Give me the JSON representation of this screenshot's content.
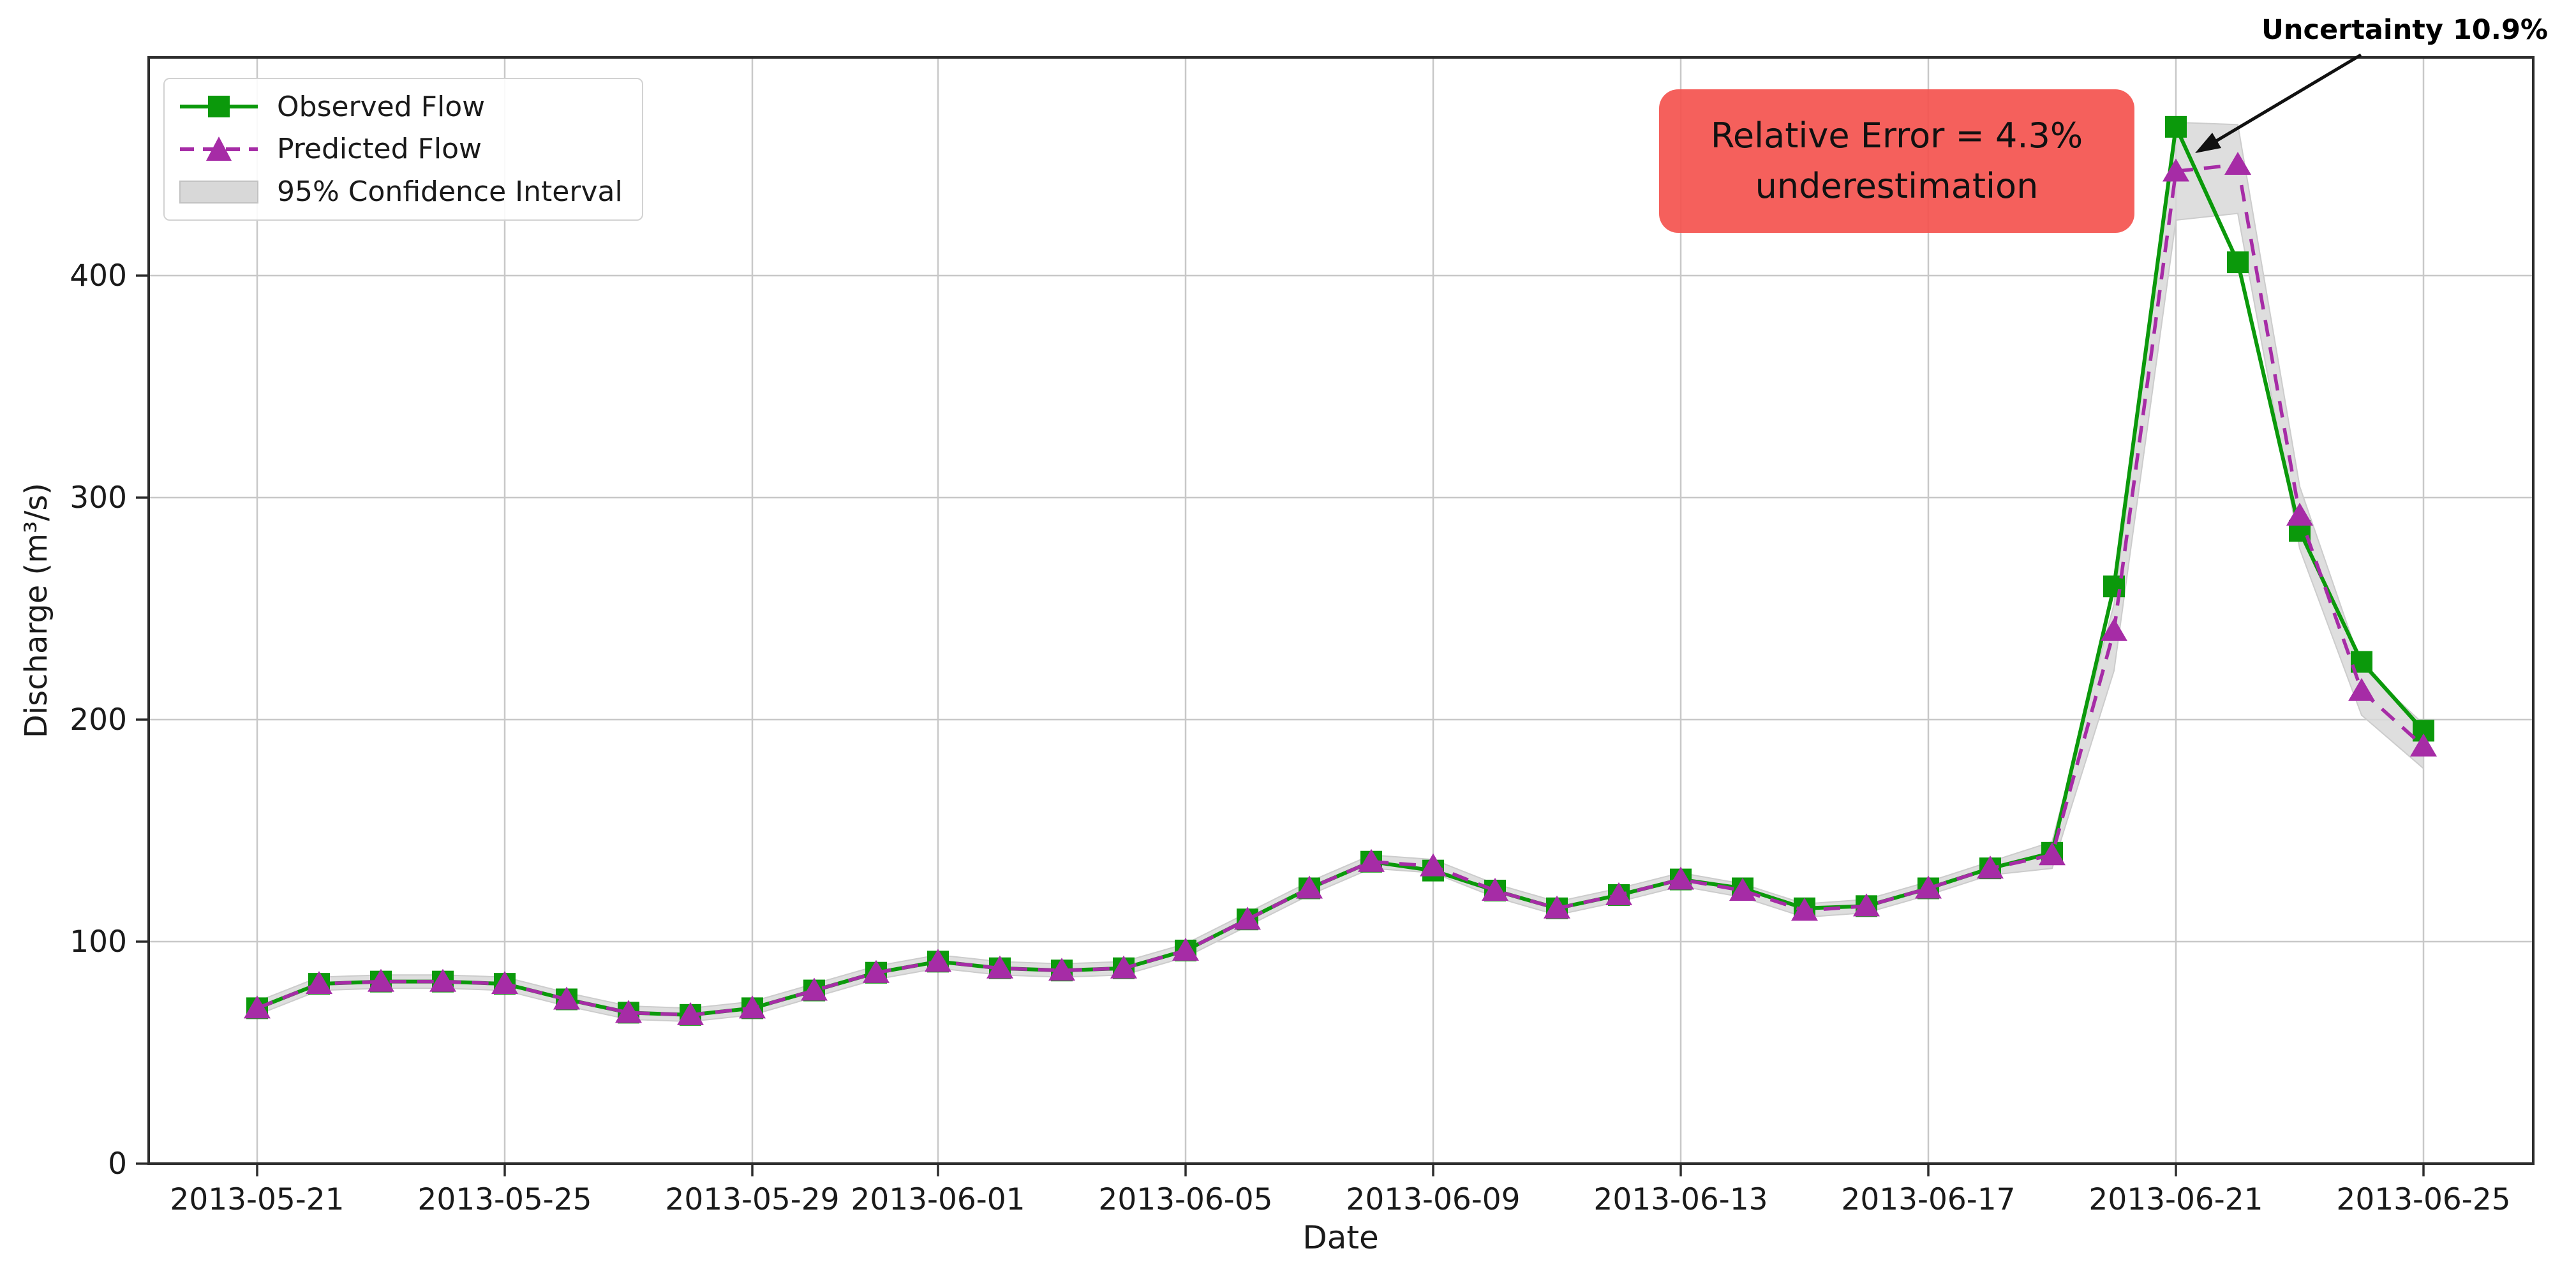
{
  "chart_data": {
    "type": "line",
    "title": "",
    "xlabel": "Date",
    "ylabel": "Discharge (m³/s)",
    "grid": true,
    "legend_position": "upper left",
    "ylim": [
      0,
      498
    ],
    "yticks": [
      0,
      100,
      200,
      300,
      400
    ],
    "xticks": [
      {
        "i": 0,
        "label": "2013-05-21"
      },
      {
        "i": 4,
        "label": "2013-05-25"
      },
      {
        "i": 8,
        "label": "2013-05-29"
      },
      {
        "i": 11,
        "label": "2013-06-01"
      },
      {
        "i": 15,
        "label": "2013-06-05"
      },
      {
        "i": 19,
        "label": "2013-06-09"
      },
      {
        "i": 23,
        "label": "2013-06-13"
      },
      {
        "i": 27,
        "label": "2013-06-17"
      },
      {
        "i": 31,
        "label": "2013-06-21"
      },
      {
        "i": 35,
        "label": "2013-06-25"
      }
    ],
    "x": [
      "2013-05-21",
      "2013-05-22",
      "2013-05-23",
      "2013-05-24",
      "2013-05-25",
      "2013-05-26",
      "2013-05-27",
      "2013-05-28",
      "2013-05-29",
      "2013-05-30",
      "2013-05-31",
      "2013-06-01",
      "2013-06-02",
      "2013-06-03",
      "2013-06-04",
      "2013-06-05",
      "2013-06-06",
      "2013-06-07",
      "2013-06-08",
      "2013-06-09",
      "2013-06-10",
      "2013-06-11",
      "2013-06-12",
      "2013-06-13",
      "2013-06-14",
      "2013-06-15",
      "2013-06-16",
      "2013-06-17",
      "2013-06-18",
      "2013-06-19",
      "2013-06-20",
      "2013-06-21",
      "2013-06-22",
      "2013-06-23",
      "2013-06-24",
      "2013-06-25"
    ],
    "series": [
      {
        "name": "Observed Flow",
        "marker": "square",
        "style": "solid",
        "values": [
          70,
          81,
          82,
          82,
          81,
          74,
          68,
          67,
          70,
          78,
          86,
          91,
          88,
          87,
          88,
          96,
          110,
          124,
          136,
          132,
          123,
          115,
          121,
          128,
          124,
          115,
          116,
          124,
          133,
          140,
          260,
          467,
          406,
          285,
          226,
          195
        ]
      },
      {
        "name": "Predicted Flow",
        "marker": "triangle",
        "style": "dashed",
        "values": [
          70,
          81,
          82,
          82,
          81,
          74,
          68,
          67,
          70,
          78,
          86,
          91,
          88,
          87,
          88,
          96,
          110,
          124,
          136,
          134,
          123,
          115,
          121,
          128,
          123,
          114,
          116,
          124,
          133,
          139,
          240,
          447,
          450,
          292,
          213,
          188
        ]
      },
      {
        "name": "95% Confidence Interval",
        "type": "band",
        "lower": [
          67,
          78,
          79,
          79,
          78,
          71,
          65,
          64,
          67,
          75,
          83,
          88,
          85,
          84,
          85,
          93,
          107,
          121,
          133,
          131,
          120,
          112,
          118,
          125,
          120,
          111,
          113,
          121,
          130,
          133,
          222,
          425,
          428,
          277,
          202,
          178
        ],
        "upper": [
          73,
          84,
          85,
          85,
          84,
          77,
          71,
          70,
          73,
          81,
          89,
          94,
          91,
          90,
          91,
          99,
          113,
          127,
          139,
          137,
          126,
          118,
          124,
          131,
          126,
          117,
          119,
          127,
          136,
          145,
          252,
          469,
          468,
          305,
          224,
          198
        ]
      }
    ],
    "legend": {
      "observed": "Observed Flow",
      "predicted": "Predicted Flow",
      "ci": "95% Confidence Interval"
    },
    "annotations": {
      "relative_error": {
        "line1": "Relative Error = 4.3%",
        "line2": "underestimation"
      },
      "uncertainty": {
        "label": "Uncertainty 10.9%",
        "target_date": "2013-06-21"
      }
    },
    "colors": {
      "observed": "#0b990b",
      "predicted": "#a62ca6",
      "ci_fill": "#d8d8d8",
      "ci_edge": "#cccccc",
      "grid": "#c8c8c8",
      "frame": "#2d2d2d",
      "tick_text": "#1a1a1a",
      "annotation_box": "#f4534e",
      "arrow": "#111111"
    }
  }
}
